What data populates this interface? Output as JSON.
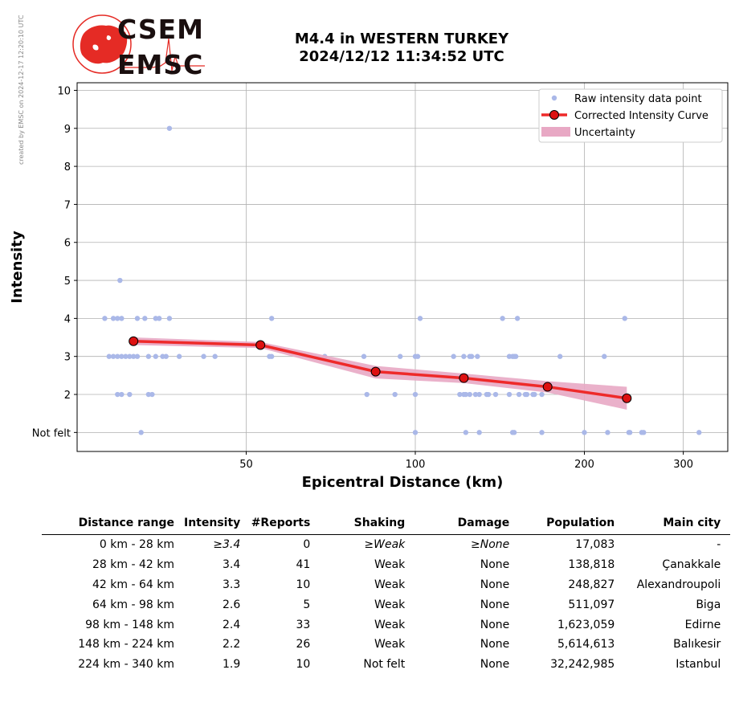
{
  "watermark": "created by EMSC on 2024-12-17 12:20:10 UTC",
  "logo": {
    "line1": "CSEM",
    "line2": "EMSC"
  },
  "title_line1": "M4.4 in WESTERN TURKEY",
  "title_line2": "2024/12/12 11:34:52 UTC",
  "colors": {
    "points": "#aab8e8",
    "curve": "#ee2a2a",
    "marker": "#dd1111",
    "band": "#e8a8c4",
    "logo_red": "#e52b25"
  },
  "chart_data": {
    "type": "scatter",
    "xscale": "log",
    "xlabel": "Epicentral Distance (km)",
    "ylabel": "Intensity",
    "xlim": [
      25,
      360
    ],
    "ylim": [
      0.5,
      10.2
    ],
    "xticks": [
      50,
      100,
      200,
      300
    ],
    "yticks": [
      1,
      2,
      3,
      4,
      5,
      6,
      7,
      8,
      9,
      10
    ],
    "ytick_labels": [
      "Not felt",
      "2",
      "3",
      "4",
      "5",
      "6",
      "7",
      "8",
      "9",
      "10"
    ],
    "grid": true,
    "legend": {
      "position": "top-right",
      "entries": [
        "Raw intensity data point",
        "Corrected Intensity Curve",
        "Uncertainty"
      ]
    },
    "series": [
      {
        "name": "Raw intensity data point",
        "kind": "points",
        "points": [
          [
            36.5,
            9
          ],
          [
            29.8,
            5
          ],
          [
            28,
            4
          ],
          [
            29,
            4
          ],
          [
            29.5,
            4
          ],
          [
            30,
            4
          ],
          [
            32,
            4
          ],
          [
            33,
            4
          ],
          [
            34.5,
            4
          ],
          [
            35,
            4
          ],
          [
            36.5,
            4
          ],
          [
            55.5,
            4
          ],
          [
            102,
            4
          ],
          [
            143,
            4
          ],
          [
            152,
            4
          ],
          [
            236,
            4
          ],
          [
            28.5,
            3
          ],
          [
            29,
            3
          ],
          [
            29.5,
            3
          ],
          [
            30,
            3
          ],
          [
            30.5,
            3
          ],
          [
            31,
            3
          ],
          [
            31.5,
            3
          ],
          [
            32,
            3
          ],
          [
            33.5,
            3
          ],
          [
            34.5,
            3
          ],
          [
            35.5,
            3
          ],
          [
            36,
            3
          ],
          [
            38,
            3
          ],
          [
            42,
            3
          ],
          [
            44,
            3
          ],
          [
            55,
            3
          ],
          [
            55.5,
            3
          ],
          [
            69,
            3
          ],
          [
            81,
            3
          ],
          [
            94,
            3
          ],
          [
            100,
            3
          ],
          [
            101,
            3
          ],
          [
            117,
            3
          ],
          [
            122,
            3
          ],
          [
            125,
            3
          ],
          [
            126,
            3
          ],
          [
            129,
            3
          ],
          [
            147,
            3
          ],
          [
            149,
            3
          ],
          [
            150,
            3
          ],
          [
            151,
            3
          ],
          [
            181,
            3
          ],
          [
            217,
            3
          ],
          [
            29.5,
            2
          ],
          [
            30,
            2
          ],
          [
            31,
            2
          ],
          [
            33.5,
            2
          ],
          [
            34,
            2
          ],
          [
            82,
            2
          ],
          [
            92,
            2
          ],
          [
            100,
            2
          ],
          [
            120,
            2
          ],
          [
            122,
            2
          ],
          [
            123,
            2
          ],
          [
            125,
            2
          ],
          [
            128,
            2
          ],
          [
            130,
            2
          ],
          [
            134,
            2
          ],
          [
            135,
            2
          ],
          [
            139,
            2
          ],
          [
            147,
            2
          ],
          [
            153,
            2
          ],
          [
            157,
            2
          ],
          [
            158,
            2
          ],
          [
            162,
            2
          ],
          [
            163,
            2
          ],
          [
            168,
            2
          ],
          [
            32.5,
            1
          ],
          [
            100,
            1
          ],
          [
            123,
            1
          ],
          [
            130,
            1
          ],
          [
            149,
            1
          ],
          [
            150,
            1
          ],
          [
            168,
            1
          ],
          [
            200,
            1
          ],
          [
            220,
            1
          ],
          [
            240,
            1
          ],
          [
            241,
            1
          ],
          [
            253,
            1
          ],
          [
            255,
            1
          ],
          [
            320,
            1
          ]
        ]
      },
      {
        "name": "Corrected Intensity Curve",
        "kind": "line",
        "points": [
          [
            31.5,
            3.4
          ],
          [
            53,
            3.3
          ],
          [
            85,
            2.6
          ],
          [
            122,
            2.43
          ],
          [
            172,
            2.2
          ],
          [
            238,
            1.9
          ]
        ]
      },
      {
        "name": "Uncertainty",
        "kind": "band",
        "upper": [
          [
            31.5,
            3.5
          ],
          [
            53,
            3.38
          ],
          [
            85,
            2.75
          ],
          [
            122,
            2.55
          ],
          [
            172,
            2.35
          ],
          [
            238,
            2.2
          ]
        ],
        "lower": [
          [
            31.5,
            3.3
          ],
          [
            53,
            3.22
          ],
          [
            85,
            2.42
          ],
          [
            122,
            2.3
          ],
          [
            172,
            2.05
          ],
          [
            238,
            1.6
          ]
        ]
      }
    ]
  },
  "table": {
    "headers": [
      "Distance range",
      "Intensity",
      "#Reports",
      "Shaking",
      "Damage",
      "Population",
      "Main city"
    ],
    "rows": [
      [
        "0 km -   28 km",
        "≥3.4",
        "0",
        "≥Weak",
        "≥None",
        "17,083",
        "-"
      ],
      [
        "28 km -   42 km",
        "3.4",
        "41",
        "Weak",
        "None",
        "138,818",
        "Çanakkale"
      ],
      [
        "42 km -   64 km",
        "3.3",
        "10",
        "Weak",
        "None",
        "248,827",
        "Alexandroupoli"
      ],
      [
        "64 km -   98 km",
        "2.6",
        "5",
        "Weak",
        "None",
        "511,097",
        "Biga"
      ],
      [
        "98 km -  148 km",
        "2.4",
        "33",
        "Weak",
        "None",
        "1,623,059",
        "Edirne"
      ],
      [
        "148 km -  224 km",
        "2.2",
        "26",
        "Weak",
        "None",
        "5,614,613",
        "Balıkesir"
      ],
      [
        "224 km -  340 km",
        "1.9",
        "10",
        "Not felt",
        "None",
        "32,242,985",
        "Istanbul"
      ]
    ]
  }
}
